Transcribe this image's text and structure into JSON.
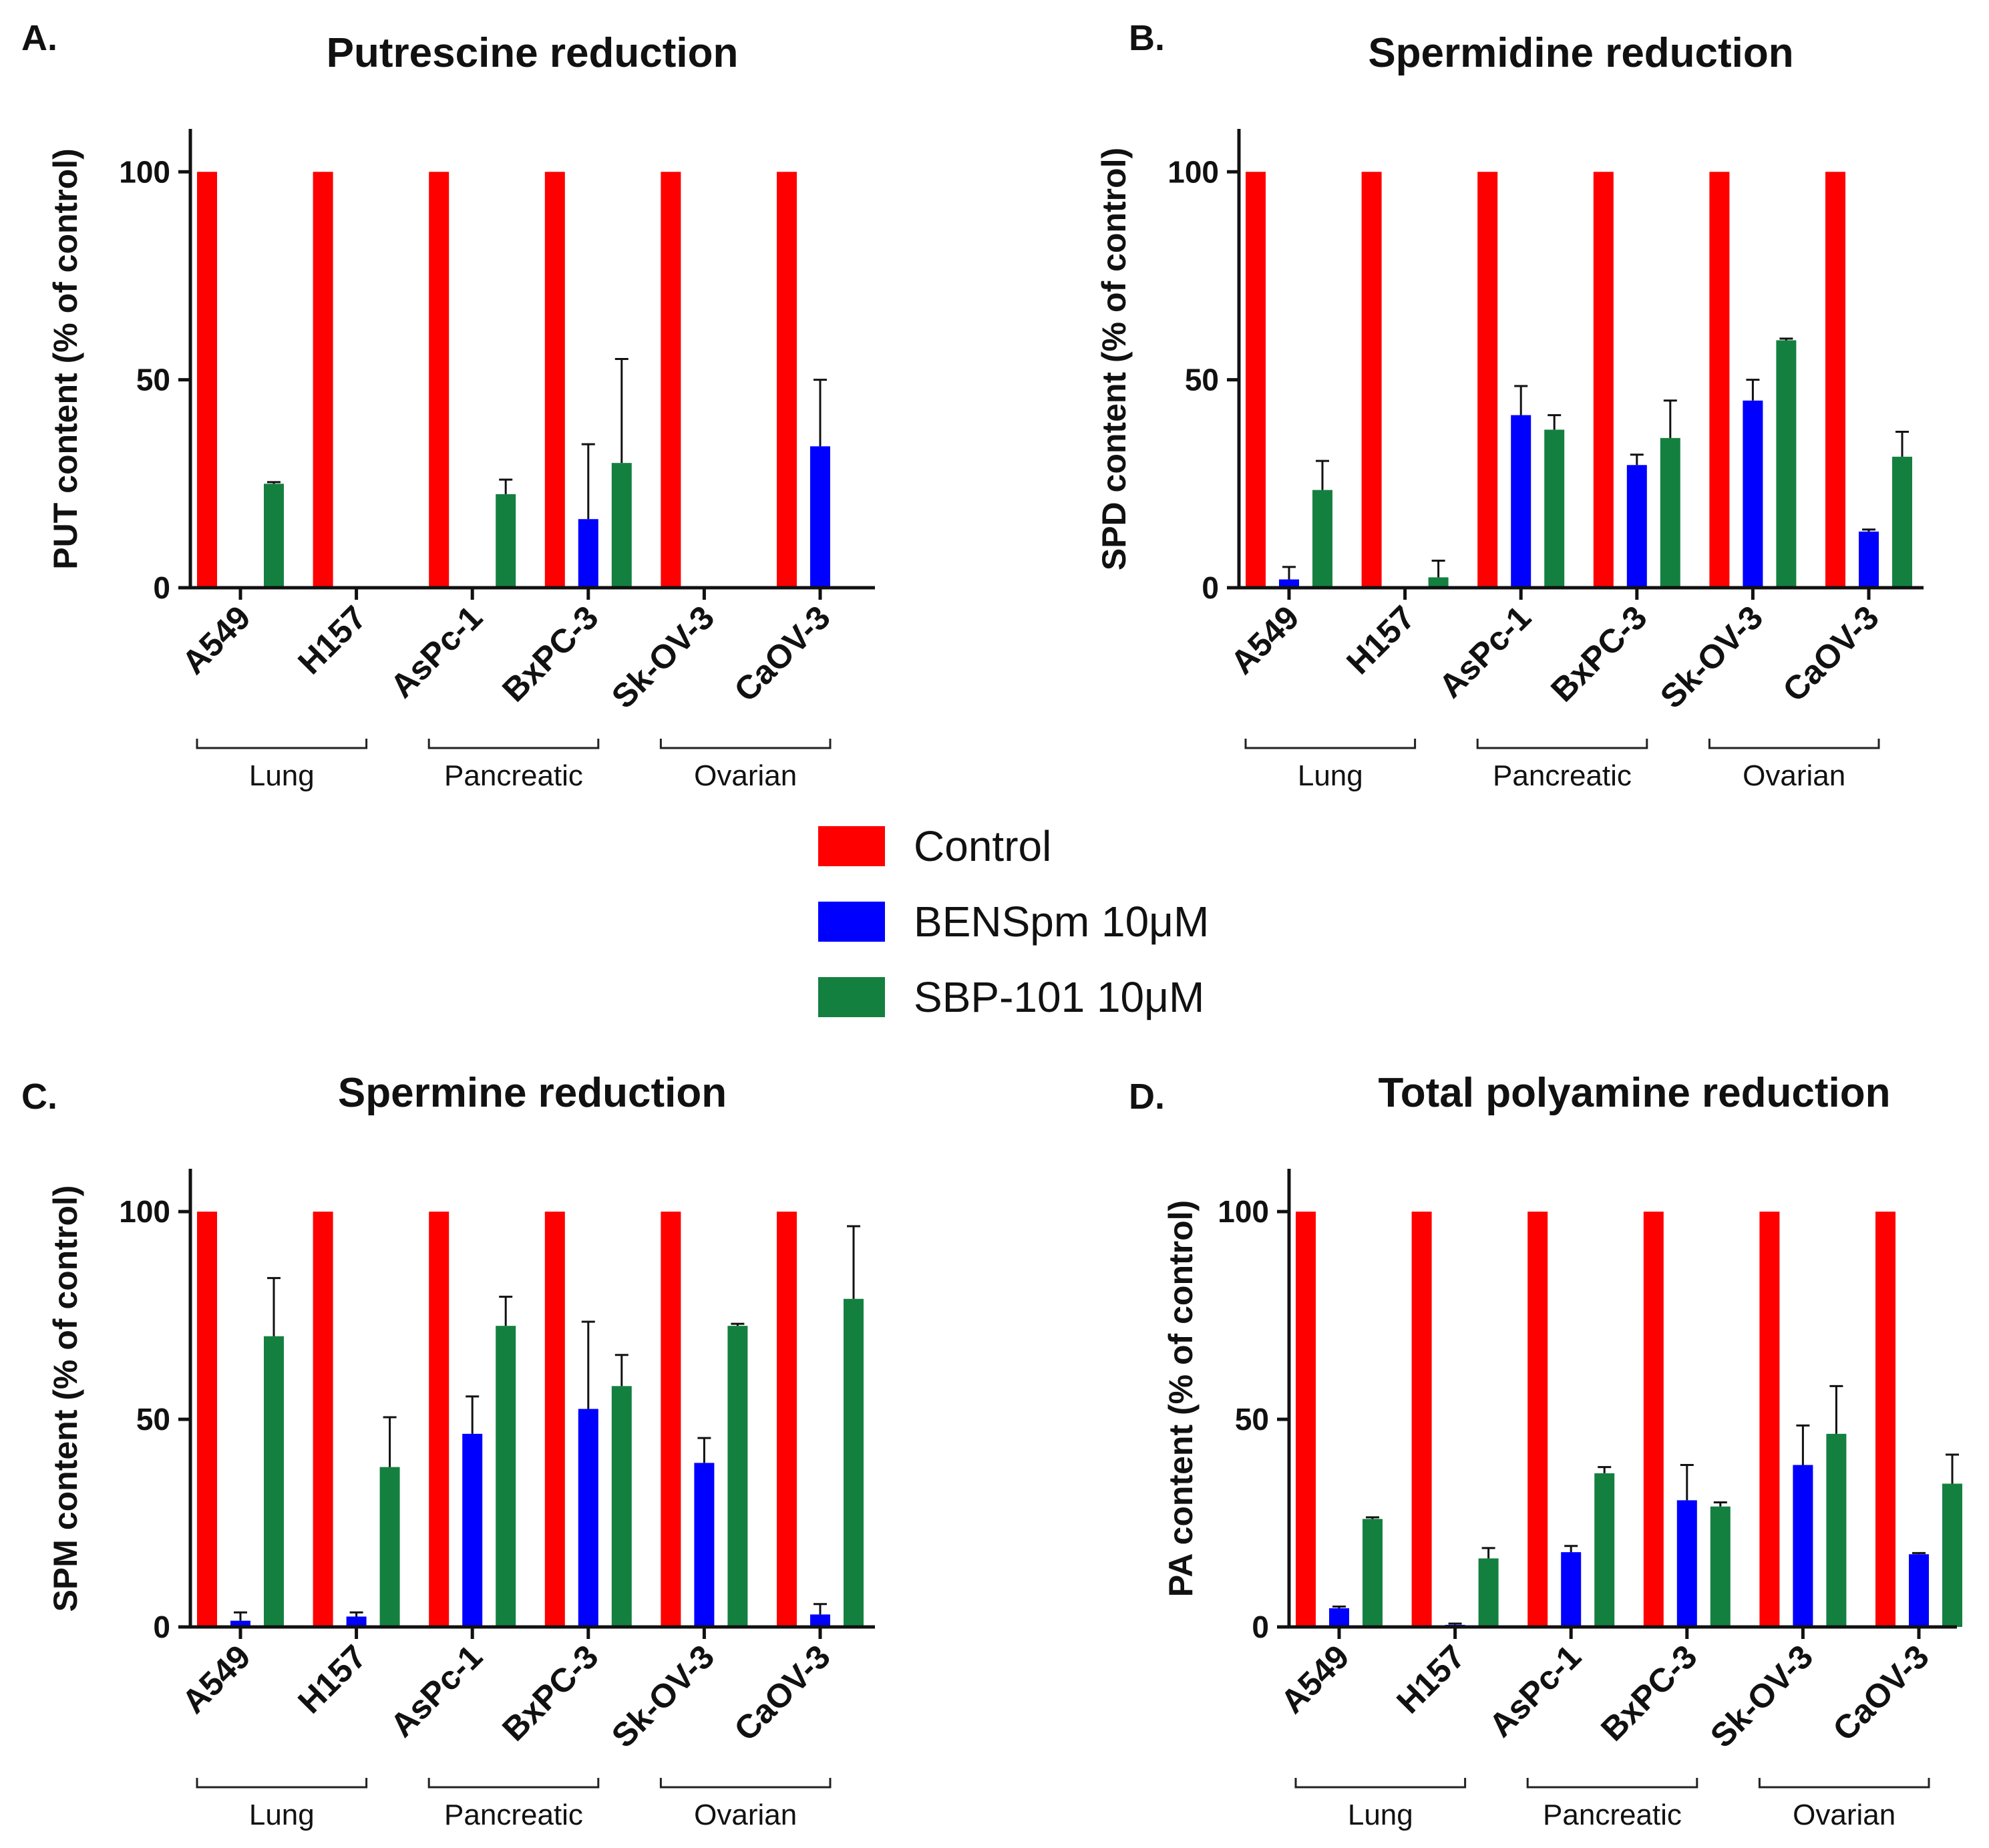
{
  "legend": [
    {
      "name": "Control",
      "color": "#ff0000"
    },
    {
      "name": "BENSpm 10μM",
      "color": "#0000ff"
    },
    {
      "name": "SBP-101 10μM",
      "color": "#148040"
    }
  ],
  "chart_data": [
    {
      "type": "bar",
      "panel": "A.",
      "title": "Putrescine reduction",
      "ylabel": "PUT content (% of control)",
      "xlabel": "",
      "ylim": [
        0,
        110
      ],
      "yticks": [
        0,
        50,
        100
      ],
      "categories": [
        "A549",
        "H157",
        "AsPc-1",
        "BxPC-3",
        "Sk-OV-3",
        "CaOV-3"
      ],
      "groups": [
        {
          "label": "Lung",
          "categories": [
            "A549",
            "H157"
          ]
        },
        {
          "label": "Pancreatic",
          "categories": [
            "AsPc-1",
            "BxPC-3"
          ]
        },
        {
          "label": "Ovarian",
          "categories": [
            "Sk-OV-3",
            "CaOV-3"
          ]
        }
      ],
      "series": [
        {
          "name": "Control",
          "values": [
            100,
            100,
            100,
            100,
            100,
            100
          ],
          "errors": [
            0,
            0,
            0,
            0,
            0,
            0
          ]
        },
        {
          "name": "BENSpm 10μM",
          "values": [
            0,
            0,
            0,
            16.5,
            0,
            34
          ],
          "errors": [
            0,
            0,
            0,
            18,
            0,
            16
          ]
        },
        {
          "name": "SBP-101 10μM",
          "values": [
            25,
            0,
            22.5,
            30,
            0,
            0
          ],
          "errors": [
            0.4,
            0,
            3.5,
            25,
            0,
            0
          ]
        }
      ]
    },
    {
      "type": "bar",
      "panel": "B.",
      "title": "Spermidine reduction",
      "ylabel": "SPD content (% of control)",
      "xlabel": "",
      "ylim": [
        0,
        110
      ],
      "yticks": [
        0,
        50,
        100
      ],
      "categories": [
        "A549",
        "H157",
        "AsPc-1",
        "BxPC-3",
        "Sk-OV-3",
        "CaOV-3"
      ],
      "groups": [
        {
          "label": "Lung",
          "categories": [
            "A549",
            "H157"
          ]
        },
        {
          "label": "Pancreatic",
          "categories": [
            "AsPc-1",
            "BxPC-3"
          ]
        },
        {
          "label": "Ovarian",
          "categories": [
            "Sk-OV-3",
            "CaOV-3"
          ]
        }
      ],
      "series": [
        {
          "name": "Control",
          "values": [
            100,
            100,
            100,
            100,
            100,
            100
          ],
          "errors": [
            0,
            0,
            0,
            0,
            0,
            0
          ]
        },
        {
          "name": "BENSpm 10μM",
          "values": [
            2,
            0,
            41.5,
            29.5,
            45,
            13.5
          ],
          "errors": [
            3,
            0,
            7,
            2.5,
            5,
            0.5
          ]
        },
        {
          "name": "SBP-101 10μM",
          "values": [
            23.5,
            2.5,
            38,
            36,
            59.5,
            31.5
          ],
          "errors": [
            7,
            4,
            3.5,
            9,
            0.4,
            6
          ]
        }
      ]
    },
    {
      "type": "bar",
      "panel": "C.",
      "title": "Spermine reduction",
      "ylabel": "SPM content (% of control)",
      "xlabel": "",
      "ylim": [
        0,
        110
      ],
      "yticks": [
        0,
        50,
        100
      ],
      "categories": [
        "A549",
        "H157",
        "AsPc-1",
        "BxPC-3",
        "Sk-OV-3",
        "CaOV-3"
      ],
      "groups": [
        {
          "label": "Lung",
          "categories": [
            "A549",
            "H157"
          ]
        },
        {
          "label": "Pancreatic",
          "categories": [
            "AsPc-1",
            "BxPC-3"
          ]
        },
        {
          "label": "Ovarian",
          "categories": [
            "Sk-OV-3",
            "CaOV-3"
          ]
        }
      ],
      "series": [
        {
          "name": "Control",
          "values": [
            100,
            100,
            100,
            100,
            100,
            100
          ],
          "errors": [
            0,
            0,
            0,
            0,
            0,
            0
          ]
        },
        {
          "name": "BENSpm 10μM",
          "values": [
            1.5,
            2.5,
            46.5,
            52.5,
            39.5,
            3
          ],
          "errors": [
            2,
            1,
            9,
            21,
            6,
            2.5
          ]
        },
        {
          "name": "SBP-101 10μM",
          "values": [
            70,
            38.5,
            72.5,
            58,
            72.5,
            79
          ],
          "errors": [
            14,
            12,
            7,
            7.5,
            0.5,
            17.5
          ]
        }
      ]
    },
    {
      "type": "bar",
      "panel": "D.",
      "title": "Total polyamine reduction",
      "ylabel": "PA content (% of control)",
      "xlabel": "",
      "ylim": [
        0,
        110
      ],
      "yticks": [
        0,
        50,
        100
      ],
      "categories": [
        "A549",
        "H157",
        "AsPc-1",
        "BxPC-3",
        "Sk-OV-3",
        "CaOV-3"
      ],
      "groups": [
        {
          "label": "Lung",
          "categories": [
            "A549",
            "H157"
          ]
        },
        {
          "label": "Pancreatic",
          "categories": [
            "AsPc-1",
            "BxPC-3"
          ]
        },
        {
          "label": "Ovarian",
          "categories": [
            "Sk-OV-3",
            "CaOV-3"
          ]
        }
      ],
      "series": [
        {
          "name": "Control",
          "values": [
            100,
            100,
            100,
            100,
            100,
            100
          ],
          "errors": [
            0,
            0,
            0,
            0,
            0,
            0
          ]
        },
        {
          "name": "BENSpm 10μM",
          "values": [
            4.5,
            0.5,
            18,
            30.5,
            39,
            17.5
          ],
          "errors": [
            0.4,
            0.3,
            1.5,
            8.5,
            9.5,
            0.3
          ]
        },
        {
          "name": "SBP-101 10μM",
          "values": [
            26,
            16.5,
            37,
            29,
            46.5,
            34.5
          ],
          "errors": [
            0.4,
            2.5,
            1.5,
            1,
            11.5,
            7
          ]
        }
      ]
    }
  ]
}
